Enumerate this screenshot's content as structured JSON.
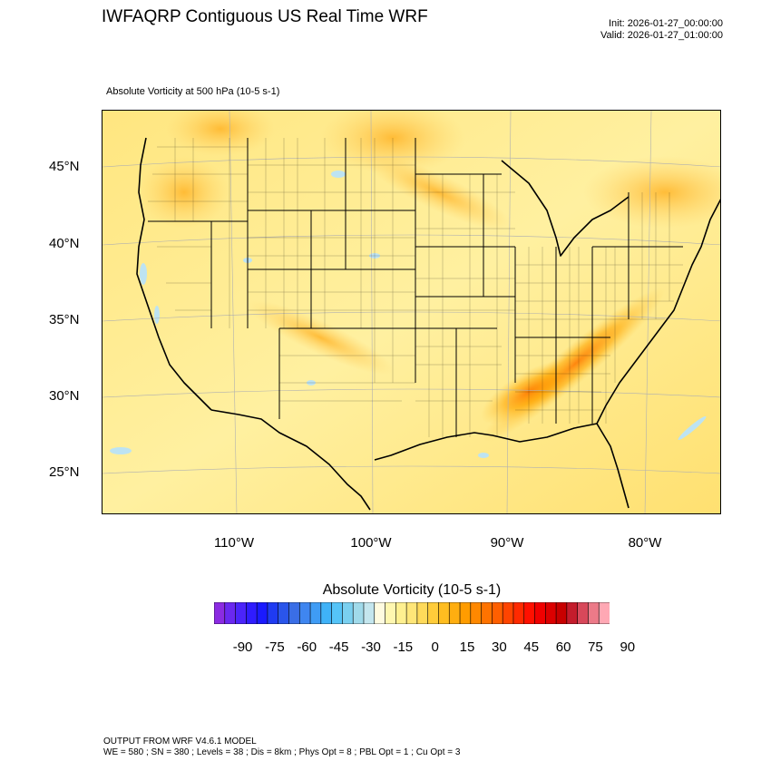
{
  "title": "IWFAQRP Contiguous US Real Time WRF",
  "init": "Init: 2026-01-27_00:00:00",
  "valid": "Valid: 2026-01-27_01:00:00",
  "subtitle": "Absolute Vorticity at 500 hPa   (10-5 s-1)",
  "lat_labels": [
    "45°N",
    "40°N",
    "35°N",
    "30°N",
    "25°N"
  ],
  "lon_labels": [
    "110°W",
    "100°W",
    "90°W",
    "80°W"
  ],
  "colorbar": {
    "title": "Absolute Vorticity  (10-5 s-1)",
    "tick_labels": [
      "-90",
      "-75",
      "-60",
      "-45",
      "-30",
      "-15",
      "0",
      "15",
      "30",
      "45",
      "60",
      "75",
      "90"
    ],
    "colors": [
      "#8b2be2",
      "#6a28f0",
      "#4b24fa",
      "#2f1cff",
      "#1a1aff",
      "#1f3bf2",
      "#2a55ea",
      "#3a6ee6",
      "#3f86f0",
      "#3f9cf5",
      "#3fb2f8",
      "#55c4f8",
      "#7ad0f0",
      "#a0daea",
      "#c4e6ee",
      "#fffbe0",
      "#fff7b0",
      "#fff090",
      "#ffe678",
      "#ffda5a",
      "#ffcc3a",
      "#ffbd20",
      "#ffae10",
      "#ff9c00",
      "#ff8800",
      "#ff7300",
      "#ff5f00",
      "#ff4400",
      "#ff2a00",
      "#ff1000",
      "#f00000",
      "#dc0000",
      "#c80000",
      "#c41c2c",
      "#d8485a",
      "#ec7a88",
      "#ffa8b4"
    ]
  },
  "footer_line1": "OUTPUT FROM WRF V4.6.1 MODEL",
  "footer_line2": "WE = 580 ; SN = 380 ; Levels = 38 ; Dis = 8km ; Phys Opt = 8 ; PBL Opt = 1 ; Cu Opt = 3",
  "colors": {
    "background_field": "#ffe27a",
    "land_base": "#fff0a0",
    "positive_high": "#ff8c1a",
    "negative": "#bde3f2"
  }
}
